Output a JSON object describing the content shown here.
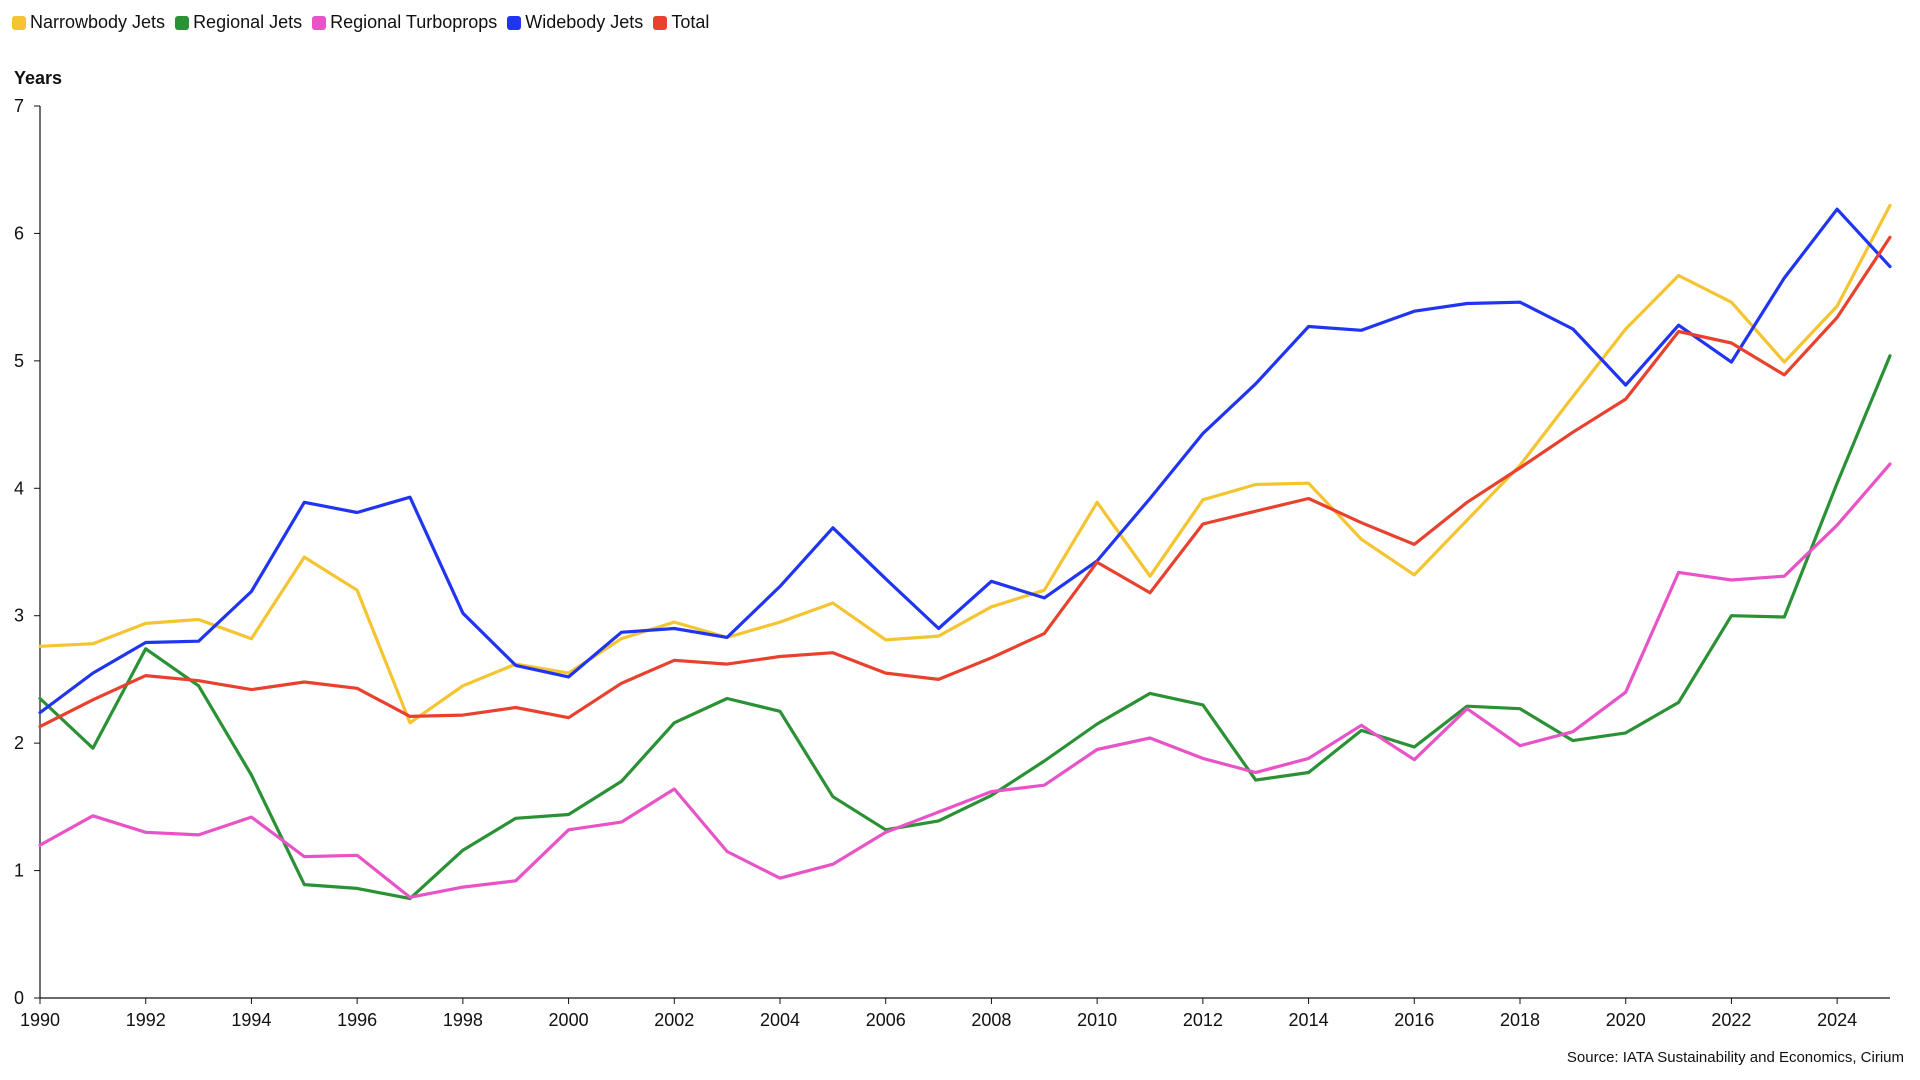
{
  "chart_data": {
    "type": "line",
    "ylabel": "Years",
    "source": "Source: IATA Sustainability and Economics, Cirium",
    "legend_position": "top-left",
    "grid": false,
    "xlim": [
      1990,
      2025
    ],
    "ylim": [
      0,
      7
    ],
    "x_ticks": [
      "1990",
      "1992",
      "1994",
      "1996",
      "1998",
      "2000",
      "2002",
      "2004",
      "2006",
      "2008",
      "2010",
      "2012",
      "2014",
      "2016",
      "2018",
      "2020",
      "2022",
      "2024"
    ],
    "y_ticks": [
      "0",
      "1",
      "2",
      "3",
      "4",
      "5",
      "6",
      "7"
    ],
    "x": [
      1990,
      1991,
      1992,
      1993,
      1994,
      1995,
      1996,
      1997,
      1998,
      1999,
      2000,
      2001,
      2002,
      2003,
      2004,
      2005,
      2006,
      2007,
      2008,
      2009,
      2010,
      2011,
      2012,
      2013,
      2014,
      2015,
      2016,
      2017,
      2018,
      2019,
      2020,
      2021,
      2022,
      2023,
      2024,
      2025
    ],
    "series": [
      {
        "name": "Narrowbody Jets",
        "color": "#f5c431",
        "values": [
          2.76,
          2.78,
          2.94,
          2.97,
          2.82,
          3.46,
          3.2,
          2.16,
          2.45,
          2.62,
          2.55,
          2.82,
          2.95,
          2.83,
          2.95,
          3.1,
          2.81,
          2.84,
          3.07,
          3.2,
          3.89,
          3.31,
          3.91,
          4.03,
          4.04,
          3.6,
          3.32,
          3.75,
          4.18,
          4.72,
          5.25,
          5.67,
          5.46,
          4.99,
          5.43,
          6.22
        ]
      },
      {
        "name": "Regional Jets",
        "color": "#2a9134",
        "values": [
          2.35,
          1.96,
          2.74,
          2.45,
          1.75,
          0.89,
          0.86,
          0.78,
          1.16,
          1.41,
          1.44,
          1.7,
          2.16,
          2.35,
          2.25,
          1.58,
          1.32,
          1.39,
          1.59,
          1.86,
          2.15,
          2.39,
          2.3,
          1.71,
          1.77,
          2.1,
          1.97,
          2.29,
          2.27,
          2.02,
          2.08,
          2.32,
          3.0,
          2.99,
          4.04,
          5.04
        ]
      },
      {
        "name": "Regional Turboprops",
        "color": "#e853c7",
        "values": [
          1.2,
          1.43,
          1.3,
          1.28,
          1.42,
          1.11,
          1.12,
          0.79,
          0.87,
          0.92,
          1.32,
          1.38,
          1.64,
          1.15,
          0.94,
          1.05,
          1.3,
          1.46,
          1.62,
          1.67,
          1.95,
          2.04,
          1.88,
          1.77,
          1.88,
          2.14,
          1.87,
          2.27,
          1.98,
          2.09,
          2.4,
          3.34,
          3.28,
          3.31,
          3.71,
          4.19
        ]
      },
      {
        "name": "Widebody Jets",
        "color": "#1f35f2",
        "values": [
          2.24,
          2.55,
          2.79,
          2.8,
          3.19,
          3.89,
          3.81,
          3.93,
          3.02,
          2.61,
          2.52,
          2.87,
          2.9,
          2.83,
          3.23,
          3.69,
          3.29,
          2.9,
          3.27,
          3.14,
          3.43,
          3.92,
          4.43,
          4.82,
          5.27,
          5.24,
          5.39,
          5.45,
          5.46,
          5.25,
          4.81,
          5.28,
          4.99,
          5.65,
          6.19,
          5.74
        ]
      },
      {
        "name": "Total",
        "color": "#e8422e",
        "values": [
          2.13,
          2.34,
          2.53,
          2.49,
          2.42,
          2.48,
          2.43,
          2.21,
          2.22,
          2.28,
          2.2,
          2.47,
          2.65,
          2.62,
          2.68,
          2.71,
          2.55,
          2.5,
          2.67,
          2.86,
          3.42,
          3.18,
          3.72,
          3.82,
          3.92,
          3.73,
          3.56,
          3.89,
          4.16,
          4.44,
          4.7,
          5.23,
          5.14,
          4.89,
          5.34,
          5.97
        ]
      }
    ]
  }
}
